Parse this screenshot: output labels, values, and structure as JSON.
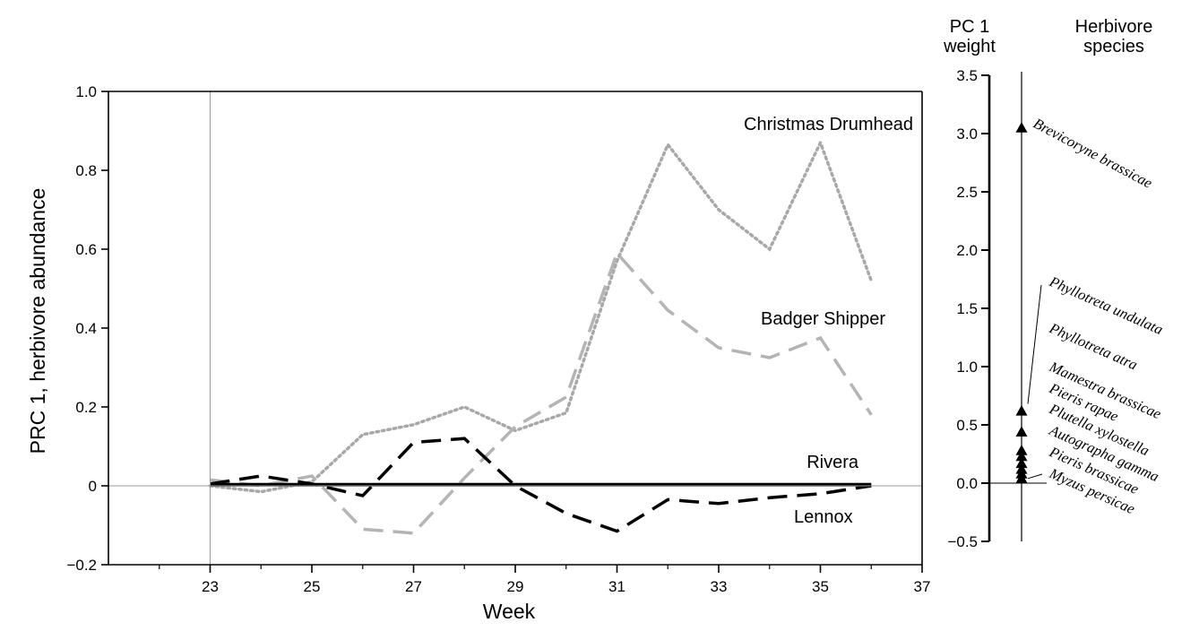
{
  "chart_data": [
    {
      "type": "line",
      "xlabel": "Week",
      "ylabel": "PRC 1, herbivore abundance",
      "xlim": [
        21,
        37
      ],
      "ylim": [
        -0.2,
        1.0
      ],
      "x_ticks": [
        23,
        25,
        27,
        29,
        31,
        33,
        35,
        37
      ],
      "y_ticks": [
        -0.2,
        0,
        0.2,
        0.4,
        0.6,
        0.8,
        1.0
      ],
      "y_tick_labels": [
        "−0.2",
        "0",
        "0.2",
        "0.4",
        "0.6",
        "0.8",
        "1.0"
      ],
      "reference_line_x": 23,
      "reference_line_y": 0,
      "grid": false,
      "series": [
        {
          "name": "Christmas Drumhead",
          "style": "dotted",
          "color": "#a8a8a8",
          "x": [
            23,
            24,
            25,
            26,
            27,
            28,
            29,
            30,
            31,
            32,
            33,
            34,
            35,
            36
          ],
          "y": [
            0.0,
            -0.015,
            0.01,
            0.13,
            0.155,
            0.2,
            0.14,
            0.185,
            0.57,
            0.865,
            0.7,
            0.6,
            0.87,
            0.52
          ]
        },
        {
          "name": "Badger Shipper",
          "style": "dashed",
          "color": "#b4b4b4",
          "x": [
            23,
            24,
            25,
            26,
            27,
            28,
            29,
            30,
            31,
            32,
            33,
            34,
            35,
            36
          ],
          "y": [
            0.015,
            0.0,
            0.025,
            -0.11,
            -0.12,
            0.02,
            0.15,
            0.225,
            0.59,
            0.445,
            0.35,
            0.325,
            0.375,
            0.18
          ]
        },
        {
          "name": "Rivera",
          "style": "solid",
          "color": "#000000",
          "x": [
            23,
            24,
            25,
            26,
            27,
            28,
            29,
            30,
            31,
            32,
            33,
            34,
            35,
            36
          ],
          "y": [
            0.003,
            0.003,
            0.003,
            0.003,
            0.003,
            0.003,
            0.003,
            0.003,
            0.003,
            0.003,
            0.003,
            0.003,
            0.003,
            0.003
          ]
        },
        {
          "name": "Lennox",
          "style": "dashed",
          "color": "#000000",
          "x": [
            23,
            24,
            25,
            26,
            27,
            28,
            29,
            30,
            31,
            32,
            33,
            34,
            35,
            36
          ],
          "y": [
            0.005,
            0.025,
            0.005,
            -0.025,
            0.11,
            0.12,
            0.0,
            -0.07,
            -0.115,
            -0.035,
            -0.045,
            -0.03,
            -0.02,
            0.0
          ]
        }
      ]
    },
    {
      "type": "scatter",
      "ylabel": "PC 1 weight",
      "category_label": "Herbivore species",
      "ylim": [
        -0.5,
        3.5
      ],
      "y_ticks": [
        -0.5,
        0.0,
        0.5,
        1.0,
        1.5,
        2.0,
        2.5,
        3.0,
        3.5
      ],
      "y_tick_labels": [
        "−0.5",
        "0.0",
        "0.5",
        "1.0",
        "1.5",
        "2.0",
        "2.5",
        "3.0",
        "3.5"
      ],
      "points": [
        {
          "species": "Brevicoryne brassicae",
          "weight": 3.05
        },
        {
          "species": "Phyllotreta undulata",
          "weight": 0.62
        },
        {
          "species": "Phyllotreta atra",
          "weight": 0.44
        },
        {
          "species": "Mamestra brassicae",
          "weight": 0.28
        },
        {
          "species": "Pieris rapae",
          "weight": 0.23
        },
        {
          "species": "Plutella xylostella",
          "weight": 0.17
        },
        {
          "species": "Autographa gamma",
          "weight": 0.12
        },
        {
          "species": "Pieris brassicae",
          "weight": 0.08
        },
        {
          "species": "Myzus persicae",
          "weight": 0.04
        }
      ]
    }
  ]
}
